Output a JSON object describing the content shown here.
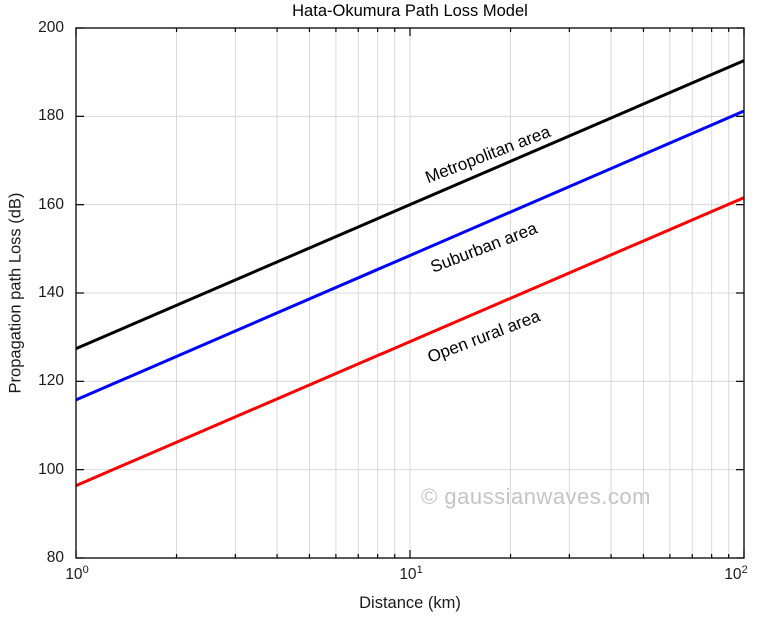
{
  "chart_data": {
    "type": "line",
    "title": "Hata-Okumura Path Loss Model",
    "xlabel": "Distance (km)",
    "ylabel": "Propagation path Loss (dB)",
    "watermark": "© gaussianwaves.com",
    "x_scale": "log10",
    "xlim": [
      1,
      100
    ],
    "ylim": [
      80,
      200
    ],
    "x_tick_base": "10",
    "x_tick_exponents": [
      0,
      1,
      2
    ],
    "y_ticks": [
      80,
      100,
      120,
      140,
      160,
      180,
      200
    ],
    "grid": true,
    "grid_color": "#d9d9d9",
    "axis_color": "#000000",
    "legend_position": "inline-labels",
    "x": [
      1,
      10,
      100
    ],
    "series": [
      {
        "name": "Metropolitan area",
        "color": "#000000",
        "values": [
          127.4,
          160.0,
          192.6
        ],
        "label_at_km": 17.1,
        "label_at_db": 171.2,
        "label_rotation_deg": -21
      },
      {
        "name": "Suburban area",
        "color": "#0000ff",
        "values": [
          115.8,
          148.5,
          181.2
        ],
        "label_at_km": 16.6,
        "label_at_db": 150.2,
        "label_rotation_deg": -21
      },
      {
        "name": "Open rural area",
        "color": "#ff0000",
        "values": [
          96.4,
          129.0,
          161.6
        ],
        "label_at_km": 16.7,
        "label_at_db": 130.0,
        "label_rotation_deg": -21
      }
    ]
  }
}
